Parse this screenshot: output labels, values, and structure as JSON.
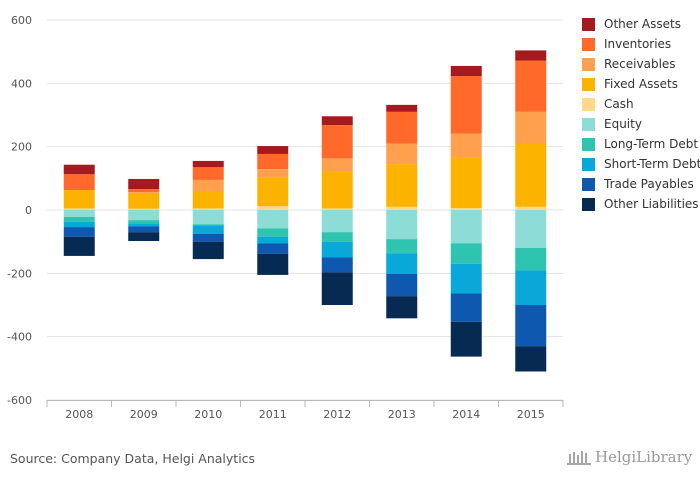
{
  "chart_data": {
    "type": "bar",
    "stacked": true,
    "categories": [
      "2008",
      "2009",
      "2010",
      "2011",
      "2012",
      "2013",
      "2014",
      "2015"
    ],
    "ylim": [
      -600,
      600
    ],
    "yticks": [
      600,
      400,
      200,
      0,
      -200,
      -400,
      -600
    ],
    "grid": true,
    "legend_position": "right",
    "series": [
      {
        "name": "Other Assets",
        "side": "positive",
        "color": "#a51a1e",
        "values": [
          30,
          32,
          20,
          25,
          28,
          22,
          32,
          32
        ]
      },
      {
        "name": "Inventories",
        "side": "positive",
        "color": "#ff6a2b",
        "values": [
          50,
          10,
          40,
          48,
          105,
          100,
          182,
          162
        ]
      },
      {
        "name": "Receivables",
        "side": "positive",
        "color": "#ffa04f",
        "values": [
          0,
          2,
          35,
          25,
          40,
          65,
          75,
          100
        ]
      },
      {
        "name": "Fixed Assets",
        "side": "positive",
        "color": "#fbb300",
        "values": [
          58,
          50,
          55,
          92,
          118,
          135,
          160,
          200
        ]
      },
      {
        "name": "Cash",
        "side": "positive",
        "color": "#ffd98a",
        "values": [
          5,
          4,
          5,
          12,
          5,
          10,
          6,
          10
        ]
      },
      {
        "name": "Equity",
        "side": "negative",
        "color": "#8ddcd5",
        "values": [
          -22,
          -32,
          -45,
          -58,
          -70,
          -92,
          -105,
          -120
        ]
      },
      {
        "name": "Long-Term Debt",
        "side": "negative",
        "color": "#2ec4b0",
        "values": [
          -15,
          -10,
          -3,
          -27,
          -30,
          -45,
          -65,
          -70
        ]
      },
      {
        "name": "Short-Term Debt",
        "side": "negative",
        "color": "#0aa8d8",
        "values": [
          -17,
          -10,
          -27,
          -20,
          -50,
          -65,
          -93,
          -110
        ]
      },
      {
        "name": "Trade Payables",
        "side": "negative",
        "color": "#0e58b0",
        "values": [
          -31,
          -18,
          -25,
          -33,
          -47,
          -70,
          -90,
          -130
        ]
      },
      {
        "name": "Other Liabilities",
        "side": "negative",
        "color": "#062a52",
        "values": [
          -60,
          -28,
          -55,
          -67,
          -103,
          -70,
          -110,
          -80
        ]
      }
    ]
  },
  "footer": {
    "source": "Source: Company Data, Helgi Analytics",
    "logo": "HelgiLibrary"
  }
}
